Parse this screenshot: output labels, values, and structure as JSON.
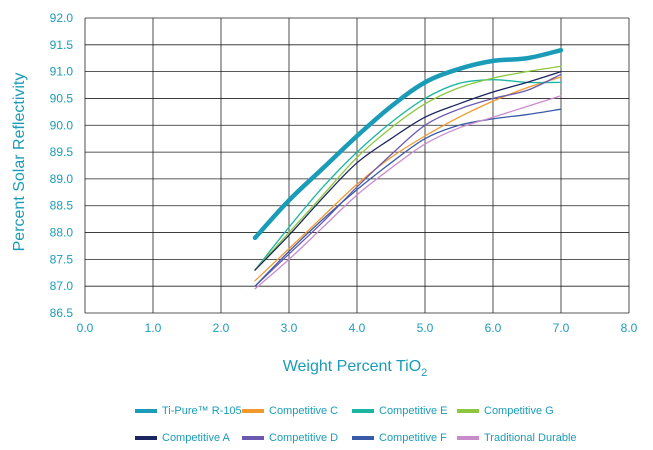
{
  "chart_data": {
    "type": "line",
    "xlabel_main": "Weight Percent TiO",
    "xlabel_sub": "2",
    "ylabel": "Percent Solar Reflectivity",
    "xlim": [
      0,
      8
    ],
    "ylim": [
      86.5,
      92.0
    ],
    "x_ticks": [
      "0.0",
      "1.0",
      "2.0",
      "3.0",
      "4.0",
      "5.0",
      "6.0",
      "7.0",
      "8.0"
    ],
    "y_ticks": [
      "86.5",
      "87.0",
      "87.5",
      "88.0",
      "88.5",
      "89.0",
      "89.5",
      "90.0",
      "90.5",
      "91.0",
      "91.5",
      "92.0"
    ],
    "grid": true,
    "legend_position": "bottom",
    "series": [
      {
        "name": "Ti-Pure™ R-105",
        "color": "#1a9cb8",
        "width": 4.5,
        "points": [
          [
            2.5,
            87.9
          ],
          [
            3.0,
            88.6
          ],
          [
            3.5,
            89.2
          ],
          [
            4.0,
            89.8
          ],
          [
            4.5,
            90.35
          ],
          [
            5.0,
            90.8
          ],
          [
            5.5,
            91.05
          ],
          [
            6.0,
            91.2
          ],
          [
            6.5,
            91.25
          ],
          [
            7.0,
            91.4
          ]
        ]
      },
      {
        "name": "Competitive C",
        "color": "#f2992e",
        "width": 1.3,
        "points": [
          [
            2.5,
            87.1
          ],
          [
            3.0,
            87.7
          ],
          [
            3.5,
            88.3
          ],
          [
            4.0,
            88.9
          ],
          [
            4.5,
            89.4
          ],
          [
            5.0,
            89.8
          ],
          [
            5.5,
            90.15
          ],
          [
            6.0,
            90.45
          ],
          [
            6.5,
            90.7
          ],
          [
            7.0,
            90.9
          ]
        ]
      },
      {
        "name": "Competitive E",
        "color": "#1bb6a2",
        "width": 1.3,
        "points": [
          [
            2.5,
            87.3
          ],
          [
            3.0,
            88.1
          ],
          [
            3.5,
            88.85
          ],
          [
            4.0,
            89.5
          ],
          [
            4.5,
            90.05
          ],
          [
            5.0,
            90.5
          ],
          [
            5.5,
            90.78
          ],
          [
            6.0,
            90.85
          ],
          [
            6.5,
            90.8
          ],
          [
            7.0,
            90.8
          ]
        ]
      },
      {
        "name": "Competitive G",
        "color": "#8dc63f",
        "width": 1.3,
        "points": [
          [
            2.5,
            87.3
          ],
          [
            3.0,
            88.0
          ],
          [
            3.5,
            88.7
          ],
          [
            4.0,
            89.4
          ],
          [
            4.5,
            89.95
          ],
          [
            5.0,
            90.4
          ],
          [
            5.5,
            90.7
          ],
          [
            6.0,
            90.88
          ],
          [
            6.5,
            91.0
          ],
          [
            7.0,
            91.1
          ]
        ]
      },
      {
        "name": "Competitive A",
        "color": "#1b2560",
        "width": 1.3,
        "points": [
          [
            2.5,
            87.3
          ],
          [
            3.0,
            87.95
          ],
          [
            3.5,
            88.65
          ],
          [
            4.0,
            89.3
          ],
          [
            4.5,
            89.75
          ],
          [
            5.0,
            90.15
          ],
          [
            5.5,
            90.4
          ],
          [
            6.0,
            90.62
          ],
          [
            6.5,
            90.8
          ],
          [
            7.0,
            91.0
          ]
        ]
      },
      {
        "name": "Competitive D",
        "color": "#6a5bb0",
        "width": 1.3,
        "points": [
          [
            2.5,
            87.0
          ],
          [
            3.0,
            87.6
          ],
          [
            3.5,
            88.2
          ],
          [
            4.0,
            88.85
          ],
          [
            4.5,
            89.45
          ],
          [
            5.0,
            90.0
          ],
          [
            5.5,
            90.3
          ],
          [
            6.0,
            90.5
          ],
          [
            6.5,
            90.65
          ],
          [
            7.0,
            90.95
          ]
        ]
      },
      {
        "name": "Competitive F",
        "color": "#3a5aa8",
        "width": 1.3,
        "points": [
          [
            2.5,
            87.0
          ],
          [
            3.0,
            87.65
          ],
          [
            3.5,
            88.25
          ],
          [
            4.0,
            88.8
          ],
          [
            4.5,
            89.3
          ],
          [
            5.0,
            89.75
          ],
          [
            5.5,
            90.0
          ],
          [
            6.0,
            90.12
          ],
          [
            6.5,
            90.2
          ],
          [
            7.0,
            90.3
          ]
        ]
      },
      {
        "name": "Traditional Durable",
        "color": "#c98ccb",
        "width": 1.3,
        "points": [
          [
            2.5,
            86.95
          ],
          [
            3.0,
            87.5
          ],
          [
            3.5,
            88.1
          ],
          [
            4.0,
            88.7
          ],
          [
            4.5,
            89.2
          ],
          [
            5.0,
            89.65
          ],
          [
            5.5,
            89.95
          ],
          [
            6.0,
            90.15
          ],
          [
            6.5,
            90.35
          ],
          [
            7.0,
            90.55
          ]
        ]
      }
    ]
  }
}
